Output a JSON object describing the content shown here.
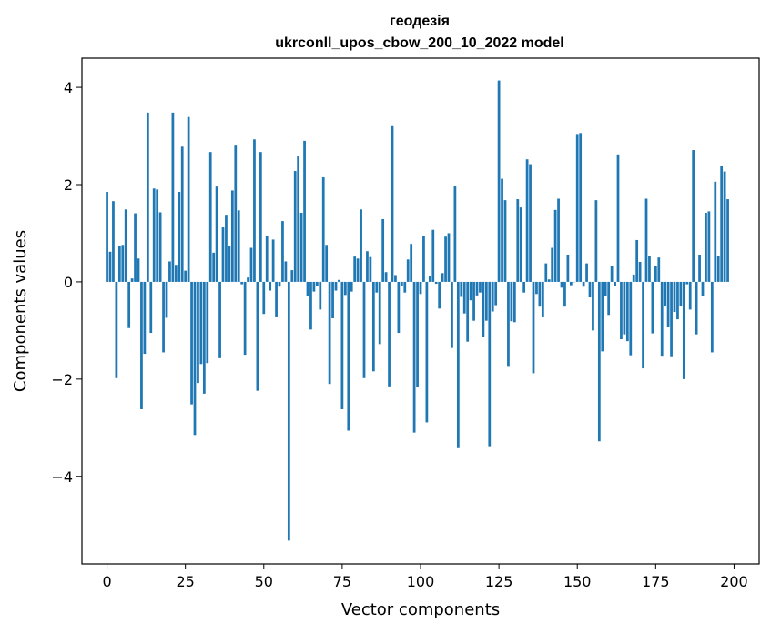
{
  "chart_data": {
    "type": "bar",
    "title": "геодезія",
    "subtitle": "ukrconll_upos_cbow_200_10_2022 model",
    "xlabel": "Vector components",
    "ylabel": "Components values",
    "xlim": [
      -8,
      208
    ],
    "ylim": [
      -5.8,
      4.6
    ],
    "xticks": [
      0,
      25,
      50,
      75,
      100,
      125,
      150,
      175,
      200
    ],
    "yticks": [
      -4,
      -2,
      0,
      2,
      4
    ],
    "grid": false,
    "color": "#1f77b4",
    "x_start": 0,
    "values": [
      1.85,
      0.62,
      1.66,
      -1.98,
      0.74,
      0.76,
      1.49,
      -0.95,
      0.07,
      1.41,
      0.48,
      -2.62,
      -1.48,
      3.48,
      -1.05,
      1.92,
      1.9,
      1.43,
      -1.45,
      -0.74,
      0.42,
      3.48,
      0.35,
      1.85,
      2.78,
      0.23,
      3.39,
      -2.52,
      -3.15,
      -2.08,
      -1.69,
      -2.3,
      -1.67,
      2.67,
      0.6,
      1.96,
      -1.57,
      1.12,
      1.38,
      0.74,
      1.88,
      2.82,
      1.47,
      -0.05,
      -1.5,
      0.09,
      0.7,
      2.93,
      -2.24,
      2.67,
      -0.66,
      0.94,
      -0.18,
      0.87,
      -0.73,
      -0.1,
      1.25,
      0.42,
      -5.32,
      0.24,
      2.28,
      2.59,
      1.42,
      2.9,
      -0.29,
      -0.98,
      -0.2,
      -0.08,
      -0.57,
      2.15,
      0.76,
      -2.1,
      -0.75,
      -0.18,
      0.04,
      -2.62,
      -0.27,
      -3.06,
      -0.2,
      0.52,
      0.48,
      1.49,
      -1.98,
      0.63,
      0.51,
      -1.84,
      -0.22,
      -1.28,
      1.29,
      0.2,
      -2.15,
      3.22,
      0.14,
      -1.05,
      -0.08,
      -0.22,
      0.46,
      0.78,
      -3.1,
      -2.17,
      -0.25,
      0.95,
      -2.89,
      0.12,
      1.07,
      -0.04,
      -0.55,
      0.18,
      0.93,
      1.0,
      -1.36,
      1.98,
      -3.42,
      -0.31,
      -0.65,
      -1.23,
      -0.38,
      -0.8,
      -0.28,
      -0.22,
      -1.14,
      -0.8,
      -3.38,
      -0.61,
      -0.48,
      4.14,
      2.12,
      1.68,
      -1.73,
      -0.81,
      -0.83,
      1.7,
      1.53,
      -0.22,
      2.52,
      2.42,
      -1.88,
      -0.25,
      -0.51,
      -0.73,
      0.38,
      0.05,
      0.7,
      1.48,
      1.71,
      -0.12,
      -0.51,
      0.56,
      -0.07,
      0.0,
      3.04,
      3.06,
      -0.1,
      0.38,
      -0.32,
      -1.0,
      1.68,
      -3.28,
      -1.43,
      -0.29,
      -0.68,
      0.32,
      -0.08,
      2.62,
      -1.18,
      -1.08,
      -1.22,
      -1.51,
      0.15,
      0.86,
      0.41,
      -1.78,
      1.71,
      0.54,
      -1.06,
      0.32,
      0.5,
      -1.52,
      -0.5,
      -0.93,
      -1.53,
      -0.62,
      -0.77,
      -0.5,
      -2.0,
      -0.05,
      -0.57,
      2.71,
      -1.08,
      0.56,
      -0.3,
      1.42,
      1.45,
      -1.45,
      2.06,
      0.53,
      2.39,
      2.27,
      1.7
    ]
  }
}
